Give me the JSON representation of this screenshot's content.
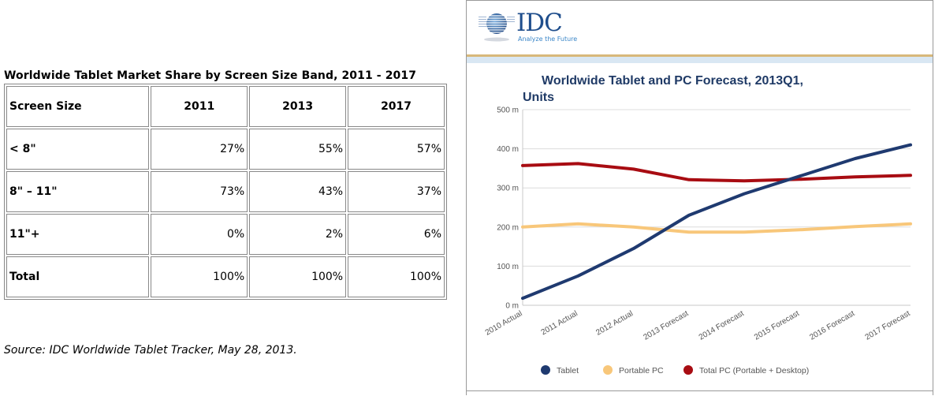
{
  "table": {
    "title": "Worldwide Tablet Market Share by Screen Size Band, 2011 - 2017",
    "headers": [
      "Screen Size",
      "2011",
      "2013",
      "2017"
    ],
    "rows": [
      [
        "< 8\"",
        "27%",
        "55%",
        "57%"
      ],
      [
        "8\" – 11\"",
        "73%",
        "43%",
        "37%"
      ],
      [
        "11\"+",
        "0%",
        "2%",
        "6%"
      ],
      [
        "Total",
        "100%",
        "100%",
        "100%"
      ]
    ],
    "source": "Source: IDC Worldwide Tablet Tracker, May 28, 2013."
  },
  "logo": {
    "name": "IDC",
    "tagline": "Analyze the Future"
  },
  "chart_data": {
    "type": "line",
    "title": "Worldwide Tablet and PC Forecast, 2013Q1,",
    "title_line2": "Units",
    "xlabel": "",
    "ylabel": "",
    "categories": [
      "2010 Actual",
      "2011 Actual",
      "2012 Actual",
      "2013 Forecast",
      "2014 Forecast",
      "2015 Forecast",
      "2016 Forecast",
      "2017 Forecast"
    ],
    "ylim": [
      0,
      500
    ],
    "yticks": [
      0,
      100,
      200,
      300,
      400,
      500
    ],
    "ytick_labels": [
      "0 m",
      "100 m",
      "200 m",
      "300 m",
      "400 m",
      "500 m"
    ],
    "grid": true,
    "legend_position": "bottom",
    "series": [
      {
        "name": "Tablet",
        "color": "#1f3a70",
        "values": [
          18,
          75,
          145,
          230,
          285,
          330,
          375,
          410
        ]
      },
      {
        "name": "Portable PC",
        "color": "#f8c77a",
        "values": [
          200,
          208,
          200,
          187,
          187,
          193,
          201,
          208
        ]
      },
      {
        "name": "Total PC (Portable + Desktop)",
        "color": "#a80c12",
        "values": [
          357,
          362,
          348,
          321,
          318,
          322,
          328,
          332
        ]
      }
    ]
  }
}
